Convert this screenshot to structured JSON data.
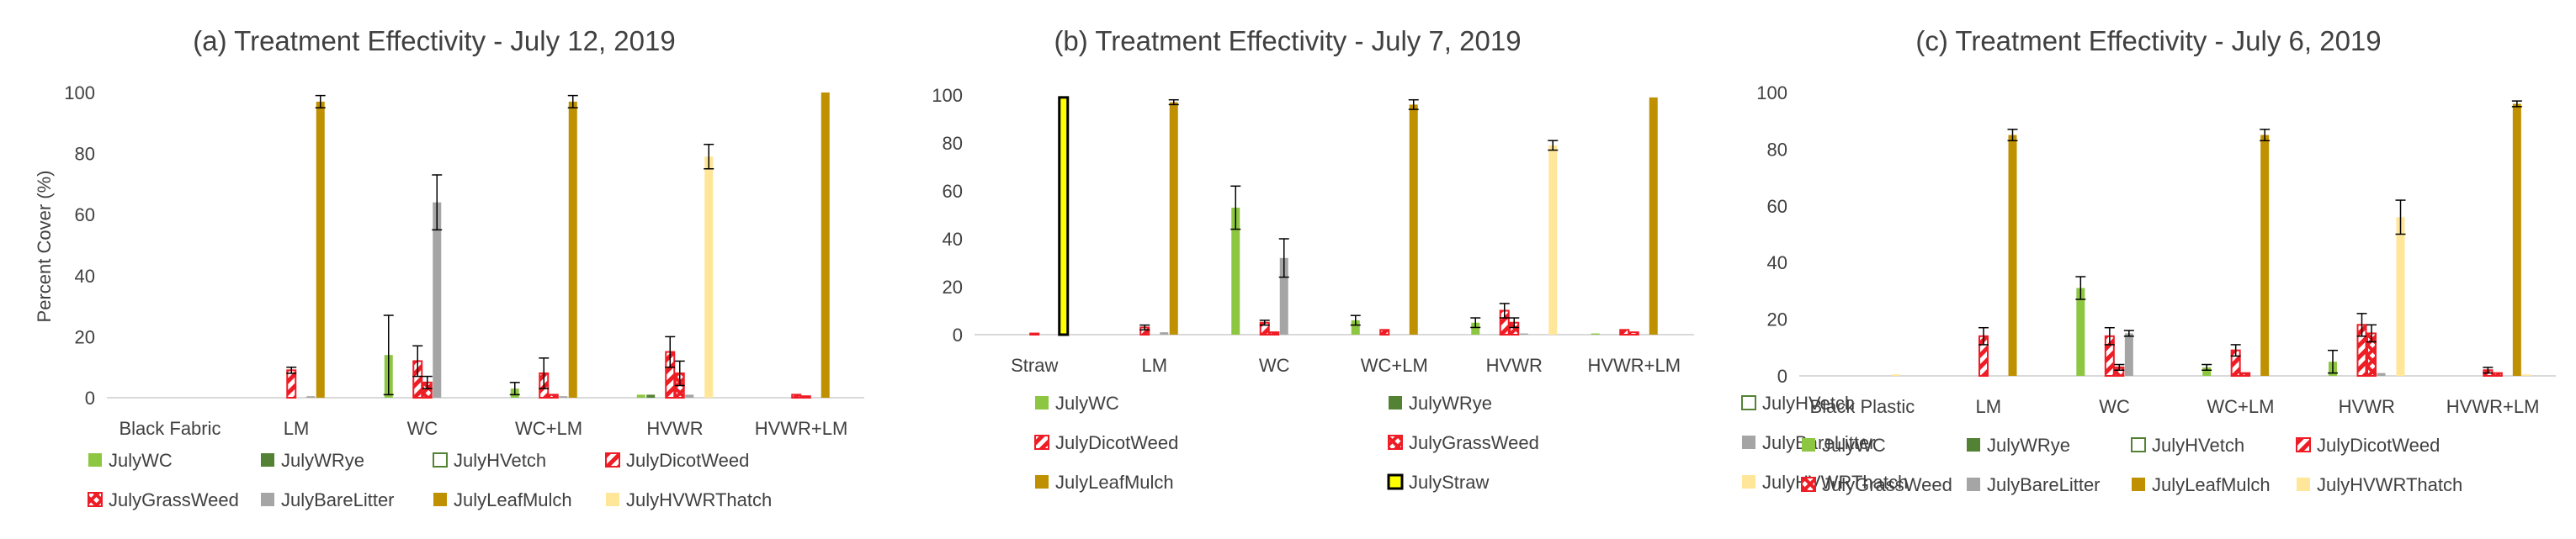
{
  "colors": {
    "JulyWC": "#8dc641",
    "JulyWRye": "#548235",
    "JulyHVetch": "#548235",
    "JulyDicotWeed": "#ee1c25",
    "JulyGrassWeed": "#ee1c25",
    "JulyBareLitter": "#a5a5a5",
    "JulyLeafMulch": "#bf9000",
    "JulyStraw": "#ffff00",
    "JulyHVWRThatch": "#ffe699",
    "axis": "#d9d9d9",
    "text": "#404040",
    "errorbar": "#000000"
  },
  "chart_data": [
    {
      "type": "bar",
      "title": "(a) Treatment Effectivity - July 12, 2019",
      "ylabel": "Percent Cover (%)",
      "xlabel": "",
      "ylim": [
        0,
        100
      ],
      "yticks": [
        "0",
        "20",
        "40",
        "60",
        "80",
        "100"
      ],
      "grid": false,
      "legend_position": "bottom",
      "legend_columns": 4,
      "categories": [
        "Black Fabric",
        "LM",
        "WC",
        "WC+LM",
        "HVWR",
        "HVWR+LM"
      ],
      "series": [
        {
          "name": "JulyWC",
          "values": [
            0,
            0,
            14,
            3,
            1,
            0
          ],
          "errors": [
            0,
            0,
            13,
            2,
            0,
            0
          ]
        },
        {
          "name": "JulyWRye",
          "values": [
            0,
            0,
            0,
            0,
            1,
            0
          ],
          "errors": [
            0,
            0,
            0,
            0,
            0,
            0
          ]
        },
        {
          "name": "JulyHVetch",
          "values": [
            0,
            0,
            0,
            0,
            0,
            0
          ],
          "errors": [
            0,
            0,
            0,
            0,
            0,
            0
          ]
        },
        {
          "name": "JulyDicotWeed",
          "values": [
            0,
            9,
            12,
            8,
            15,
            1
          ],
          "errors": [
            0,
            1,
            5,
            5,
            5,
            0
          ]
        },
        {
          "name": "JulyGrassWeed",
          "values": [
            0,
            0,
            5,
            1,
            8,
            0.5
          ],
          "errors": [
            0,
            0,
            2,
            0,
            4,
            0
          ]
        },
        {
          "name": "JulyBareLitter",
          "values": [
            0,
            0.5,
            64,
            0.5,
            1,
            0
          ],
          "errors": [
            0,
            0,
            9,
            0,
            0,
            0
          ]
        },
        {
          "name": "JulyLeafMulch",
          "values": [
            0,
            97,
            0,
            97,
            0,
            100
          ],
          "errors": [
            0,
            2,
            0,
            2,
            0,
            0
          ]
        },
        {
          "name": "JulyHVWRThatch",
          "values": [
            0,
            0,
            0,
            0,
            79,
            0
          ],
          "errors": [
            0,
            0,
            0,
            0,
            4,
            0
          ]
        }
      ]
    },
    {
      "type": "bar",
      "title": "(b) Treatment Effectivity - July 7, 2019",
      "ylabel": "",
      "xlabel": "",
      "ylim": [
        0,
        100
      ],
      "yticks": [
        "0",
        "20",
        "40",
        "60",
        "80",
        "100"
      ],
      "grid": false,
      "legend_position": "bottom",
      "legend_columns": 3,
      "categories": [
        "Straw",
        "LM",
        "WC",
        "WC+LM",
        "HVWR",
        "HVWR+LM"
      ],
      "series": [
        {
          "name": "JulyWC",
          "values": [
            0,
            0,
            53,
            6,
            5,
            0.5
          ],
          "errors": [
            0,
            0,
            9,
            2,
            2,
            0
          ]
        },
        {
          "name": "JulyWRye",
          "values": [
            0,
            0,
            0,
            0,
            0,
            0
          ],
          "errors": [
            0,
            0,
            0,
            0,
            0,
            0
          ]
        },
        {
          "name": "JulyHVetch",
          "values": [
            0,
            0,
            0,
            0,
            0,
            0
          ],
          "errors": [
            0,
            0,
            0,
            0,
            0,
            0
          ]
        },
        {
          "name": "JulyDicotWeed",
          "values": [
            0,
            3,
            5,
            2,
            10,
            2
          ],
          "errors": [
            0,
            1,
            1,
            0,
            3,
            0
          ]
        },
        {
          "name": "JulyGrassWeed",
          "values": [
            0.5,
            0,
            1,
            0,
            5,
            1
          ],
          "errors": [
            0,
            0,
            0,
            0,
            2,
            0
          ]
        },
        {
          "name": "JulyBareLitter",
          "values": [
            0,
            1,
            32,
            0,
            0.5,
            0
          ],
          "errors": [
            0,
            0,
            8,
            0,
            0,
            0
          ]
        },
        {
          "name": "JulyLeafMulch",
          "values": [
            0,
            97,
            0,
            96,
            0,
            99
          ],
          "errors": [
            0,
            1,
            0,
            2,
            0,
            0
          ]
        },
        {
          "name": "JulyStraw",
          "values": [
            99,
            0,
            0,
            0,
            0,
            0
          ],
          "errors": [
            0,
            0,
            0,
            0,
            0,
            0
          ]
        },
        {
          "name": "JulyHVWRThatch",
          "values": [
            0,
            0,
            0,
            0,
            79,
            0
          ],
          "errors": [
            0,
            0,
            0,
            0,
            2,
            0
          ]
        }
      ]
    },
    {
      "type": "bar",
      "title": "(c) Treatment Effectivity - July 6, 2019",
      "ylabel": "",
      "xlabel": "",
      "ylim": [
        0,
        100
      ],
      "yticks": [
        "0",
        "20",
        "40",
        "60",
        "80",
        "100"
      ],
      "grid": false,
      "legend_position": "bottom",
      "legend_columns": 4,
      "categories": [
        "Black Plastic",
        "LM",
        "WC",
        "WC+LM",
        "HVWR",
        "HVWR+LM"
      ],
      "series": [
        {
          "name": "JulyWC",
          "values": [
            0,
            0,
            31,
            3,
            5,
            0
          ],
          "errors": [
            0,
            0,
            4,
            1,
            4,
            0
          ]
        },
        {
          "name": "JulyWRye",
          "values": [
            0,
            0,
            0,
            0,
            0,
            0
          ],
          "errors": [
            0,
            0,
            0,
            0,
            0,
            0
          ]
        },
        {
          "name": "JulyHVetch",
          "values": [
            0,
            0,
            0,
            0,
            0,
            0
          ],
          "errors": [
            0,
            0,
            0,
            0,
            0,
            0
          ]
        },
        {
          "name": "JulyDicotWeed",
          "values": [
            0,
            14,
            14,
            9,
            18,
            2
          ],
          "errors": [
            0,
            3,
            3,
            2,
            4,
            1
          ]
        },
        {
          "name": "JulyGrassWeed",
          "values": [
            0,
            0,
            3,
            1,
            15,
            1
          ],
          "errors": [
            0,
            0,
            1,
            0,
            3,
            0
          ]
        },
        {
          "name": "JulyBareLitter",
          "values": [
            0,
            0,
            15,
            0,
            1,
            0
          ],
          "errors": [
            0,
            0,
            1,
            0,
            0,
            0
          ]
        },
        {
          "name": "JulyLeafMulch",
          "values": [
            0,
            85,
            0,
            85,
            0,
            96
          ],
          "errors": [
            0,
            2,
            0,
            2,
            0,
            1
          ]
        },
        {
          "name": "JulyHVWRThatch",
          "values": [
            0.5,
            0,
            0,
            0,
            56,
            0.5
          ],
          "errors": [
            0,
            0,
            0,
            0,
            6,
            0
          ]
        }
      ]
    }
  ]
}
